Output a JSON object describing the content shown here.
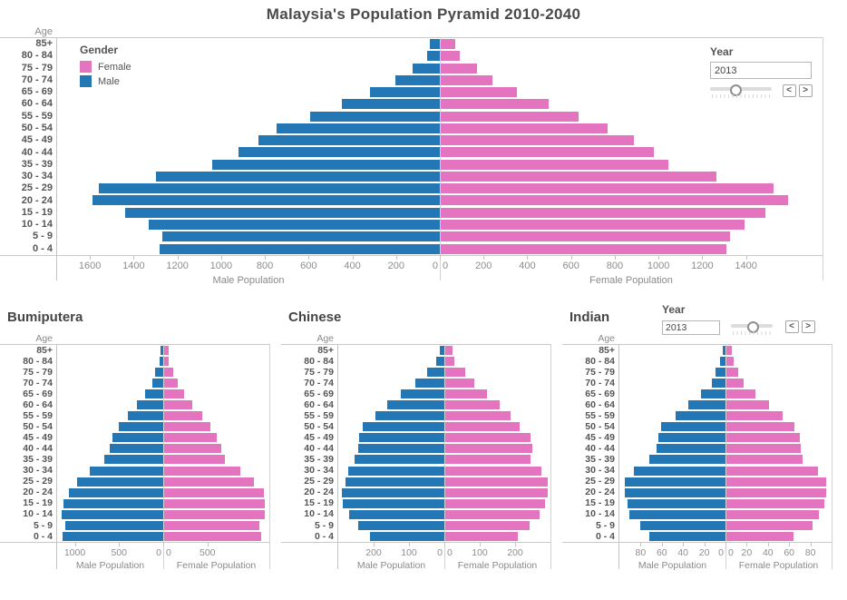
{
  "colors": {
    "male": "#2277b4",
    "female": "#e473c0"
  },
  "legend": {
    "title": "Gender",
    "items": [
      {
        "label": "Female"
      },
      {
        "label": "Male"
      }
    ]
  },
  "year_control": {
    "label": "Year",
    "value": "2013",
    "prev": "<",
    "next": ">"
  },
  "chart_data": {
    "type": "bar",
    "subtype": "population-pyramid",
    "title": "Malaysia's Population Pyramid 2010-2040",
    "age_header": "Age",
    "categories": [
      "85+",
      "80 - 84",
      "75 - 79",
      "70 - 74",
      "65 - 69",
      "60 - 64",
      "55 - 59",
      "50 - 54",
      "45 - 49",
      "40 - 44",
      "35 - 39",
      "30 - 34",
      "25 - 29",
      "20 - 24",
      "15 - 19",
      "10 - 14",
      "5 - 9",
      "0 - 4"
    ],
    "xlabel_male": "Male Population",
    "xlabel_female": "Female Population",
    "main": {
      "axis_max": 1750,
      "male_ticks": [
        1600,
        1400,
        1200,
        1000,
        800,
        600,
        400,
        200,
        0
      ],
      "female_ticks": [
        0,
        200,
        400,
        600,
        800,
        1000,
        1200,
        1400
      ],
      "series": [
        {
          "name": "Male",
          "values": [
            45,
            60,
            125,
            205,
            320,
            450,
            595,
            745,
            830,
            920,
            1040,
            1300,
            1560,
            1590,
            1440,
            1330,
            1270,
            1280
          ]
        },
        {
          "name": "Female",
          "values": [
            65,
            85,
            165,
            235,
            350,
            495,
            630,
            765,
            885,
            975,
            1040,
            1260,
            1520,
            1590,
            1485,
            1390,
            1325,
            1305
          ]
        }
      ]
    },
    "ethnic_groups": [
      {
        "title": "Bumiputera",
        "axis_max": 1200,
        "male_ticks": [
          1000,
          500,
          0
        ],
        "female_ticks": [
          0,
          500
        ],
        "series": [
          {
            "name": "Male",
            "values": [
              30,
              40,
              90,
              120,
              210,
              300,
              400,
              505,
              575,
              605,
              665,
              830,
              970,
              1070,
              1130,
              1150,
              1110,
              1140
            ]
          },
          {
            "name": "Female",
            "values": [
              50,
              55,
              100,
              150,
              230,
              320,
              430,
              525,
              595,
              645,
              685,
              860,
              1020,
              1130,
              1140,
              1140,
              1080,
              1100
            ]
          }
        ]
      },
      {
        "title": "Chinese",
        "axis_max": 300,
        "male_ticks": [
          200,
          100,
          0
        ],
        "female_ticks": [
          0,
          100,
          200
        ],
        "series": [
          {
            "name": "Male",
            "values": [
              13,
              23,
              50,
              82,
              123,
              162,
              195,
              230,
              241,
              244,
              254,
              272,
              280,
              290,
              287,
              269,
              244,
              210
            ]
          },
          {
            "name": "Female",
            "values": [
              20,
              26,
              56,
              82,
              118,
              154,
              185,
              210,
              240,
              246,
              241,
              272,
              290,
              290,
              282,
              267,
              238,
              205
            ]
          }
        ]
      },
      {
        "title": "Indian",
        "axis_max": 100,
        "male_ticks": [
          80,
          60,
          40,
          20,
          0
        ],
        "female_ticks": [
          0,
          20,
          40,
          60,
          80
        ],
        "series": [
          {
            "name": "Male",
            "values": [
              3,
              5,
              9,
              13,
              23,
              35,
              47,
              61,
              63,
              65,
              72,
              86,
              95,
              95,
              92,
              91,
              80,
              72
            ]
          },
          {
            "name": "Female",
            "values": [
              5,
              7,
              11,
              16,
              27,
              40,
              53,
              64,
              69,
              70,
              72,
              86,
              94,
              94,
              92,
              87,
              81,
              63
            ]
          }
        ]
      }
    ]
  }
}
